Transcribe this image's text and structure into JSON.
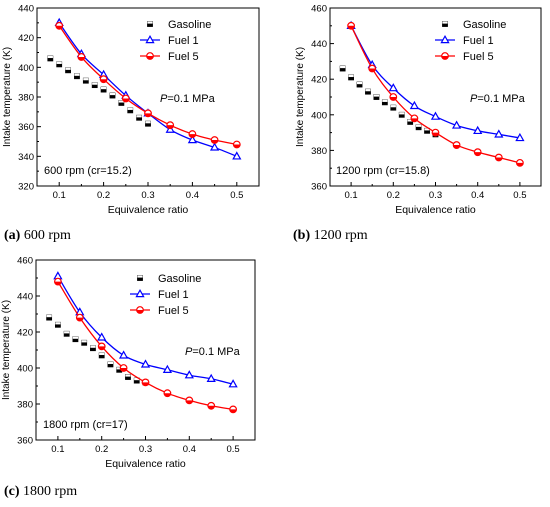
{
  "chart_data": [
    {
      "type": "scatter",
      "caption_letter": "(a)",
      "caption_text": "600 rpm",
      "xlabel": "Equivalence ratio",
      "ylabel": "Intake temperature (K)",
      "xlim": [
        0.05,
        0.55
      ],
      "ylim": [
        320,
        440
      ],
      "xticks": [
        0.1,
        0.2,
        0.3,
        0.4,
        0.5
      ],
      "yticks": [
        320,
        340,
        360,
        380,
        400,
        420,
        440
      ],
      "annotation_pressure": "P=0.1 MPa",
      "annotation_condition": "600 rpm (cr=15.2)",
      "legend_position": "top-right",
      "series": [
        {
          "name": "Gasoline",
          "marker": "square",
          "color": "#000000",
          "x": [
            0.08,
            0.1,
            0.12,
            0.14,
            0.16,
            0.18,
            0.2,
            0.22,
            0.24,
            0.26,
            0.28,
            0.3
          ],
          "y": [
            406,
            402,
            398,
            394,
            391,
            388,
            385,
            381,
            376,
            371,
            366,
            362
          ]
        },
        {
          "name": "Fuel 1",
          "marker": "triangle",
          "color": "#0000ff",
          "x": [
            0.1,
            0.15,
            0.2,
            0.25,
            0.3,
            0.35,
            0.4,
            0.45,
            0.5
          ],
          "y": [
            430,
            409,
            395,
            381,
            369,
            358,
            351,
            346,
            340
          ]
        },
        {
          "name": "Fuel 5",
          "marker": "circle",
          "color": "#ff0000",
          "x": [
            0.1,
            0.15,
            0.2,
            0.25,
            0.3,
            0.35,
            0.4,
            0.45,
            0.5
          ],
          "y": [
            428,
            407,
            392,
            379,
            369,
            361,
            355,
            351,
            348
          ]
        }
      ]
    },
    {
      "type": "scatter",
      "caption_letter": "(b)",
      "caption_text": "1200 rpm",
      "xlabel": "Equivalence ratio",
      "ylabel": "Intake temperature (K)",
      "xlim": [
        0.05,
        0.55
      ],
      "ylim": [
        360,
        460
      ],
      "xticks": [
        0.1,
        0.2,
        0.3,
        0.4,
        0.5
      ],
      "yticks": [
        360,
        380,
        400,
        420,
        440,
        460
      ],
      "annotation_pressure": "P=0.1 MPa",
      "annotation_condition": "1200 rpm (cr=15.8)",
      "legend_position": "top-right",
      "series": [
        {
          "name": "Gasoline",
          "marker": "square",
          "color": "#000000",
          "x": [
            0.08,
            0.1,
            0.12,
            0.14,
            0.16,
            0.18,
            0.2,
            0.22,
            0.24,
            0.26,
            0.28,
            0.3
          ],
          "y": [
            426,
            421,
            417,
            413,
            410,
            407,
            404,
            400,
            396,
            393,
            391,
            389
          ]
        },
        {
          "name": "Fuel 1",
          "marker": "triangle",
          "color": "#0000ff",
          "x": [
            0.1,
            0.15,
            0.2,
            0.25,
            0.3,
            0.35,
            0.4,
            0.45,
            0.5
          ],
          "y": [
            450,
            428,
            415,
            405,
            399,
            394,
            391,
            389,
            387
          ]
        },
        {
          "name": "Fuel 5",
          "marker": "circle",
          "color": "#ff0000",
          "x": [
            0.1,
            0.15,
            0.2,
            0.25,
            0.3,
            0.35,
            0.4,
            0.45,
            0.5
          ],
          "y": [
            450,
            426,
            410,
            398,
            390,
            383,
            379,
            376,
            373
          ]
        }
      ]
    },
    {
      "type": "scatter",
      "caption_letter": "(c)",
      "caption_text": "1800 rpm",
      "xlabel": "Equivalence ratio",
      "ylabel": "Intake temperature (K)",
      "xlim": [
        0.05,
        0.55
      ],
      "ylim": [
        360,
        460
      ],
      "xticks": [
        0.1,
        0.2,
        0.3,
        0.4,
        0.5
      ],
      "yticks": [
        360,
        380,
        400,
        420,
        440,
        460
      ],
      "annotation_pressure": "P=0.1 MPa",
      "annotation_condition": "1800 rpm (cr=17)",
      "legend_position": "top-right",
      "series": [
        {
          "name": "Gasoline",
          "marker": "square",
          "color": "#000000",
          "x": [
            0.08,
            0.1,
            0.12,
            0.14,
            0.16,
            0.18,
            0.2,
            0.22,
            0.24,
            0.26,
            0.28,
            0.3
          ],
          "y": [
            428,
            424,
            419,
            416,
            414,
            411,
            407,
            402,
            399,
            395,
            393,
            392
          ]
        },
        {
          "name": "Fuel 1",
          "marker": "triangle",
          "color": "#0000ff",
          "x": [
            0.1,
            0.15,
            0.2,
            0.25,
            0.3,
            0.35,
            0.4,
            0.45,
            0.5
          ],
          "y": [
            451,
            431,
            417,
            407,
            402,
            399,
            396,
            394,
            391
          ]
        },
        {
          "name": "Fuel 5",
          "marker": "circle",
          "color": "#ff0000",
          "x": [
            0.1,
            0.15,
            0.2,
            0.25,
            0.3,
            0.35,
            0.4,
            0.45,
            0.5
          ],
          "y": [
            448,
            428,
            412,
            400,
            392,
            386,
            382,
            379,
            377
          ]
        }
      ]
    }
  ]
}
